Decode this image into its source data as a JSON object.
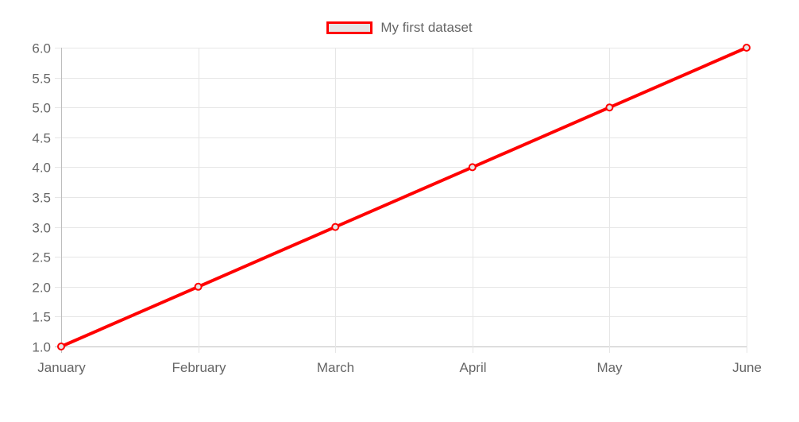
{
  "chart_data": {
    "type": "line",
    "categories": [
      "January",
      "February",
      "March",
      "April",
      "May",
      "June"
    ],
    "series": [
      {
        "name": "My first dataset",
        "values": [
          1,
          2,
          3,
          4,
          5,
          6
        ],
        "color": "#ff0000",
        "fill": "#e5e5e5"
      }
    ],
    "ylim": [
      1.0,
      6.0
    ],
    "yticks": [
      "1.0",
      "1.5",
      "2.0",
      "2.5",
      "3.0",
      "3.5",
      "4.0",
      "4.5",
      "5.0",
      "5.5",
      "6.0"
    ],
    "grid": true,
    "legend_position": "top-center",
    "colors": {
      "grid": "#e6e6e6",
      "axis": "#bdbdbd",
      "text": "#666666"
    }
  }
}
